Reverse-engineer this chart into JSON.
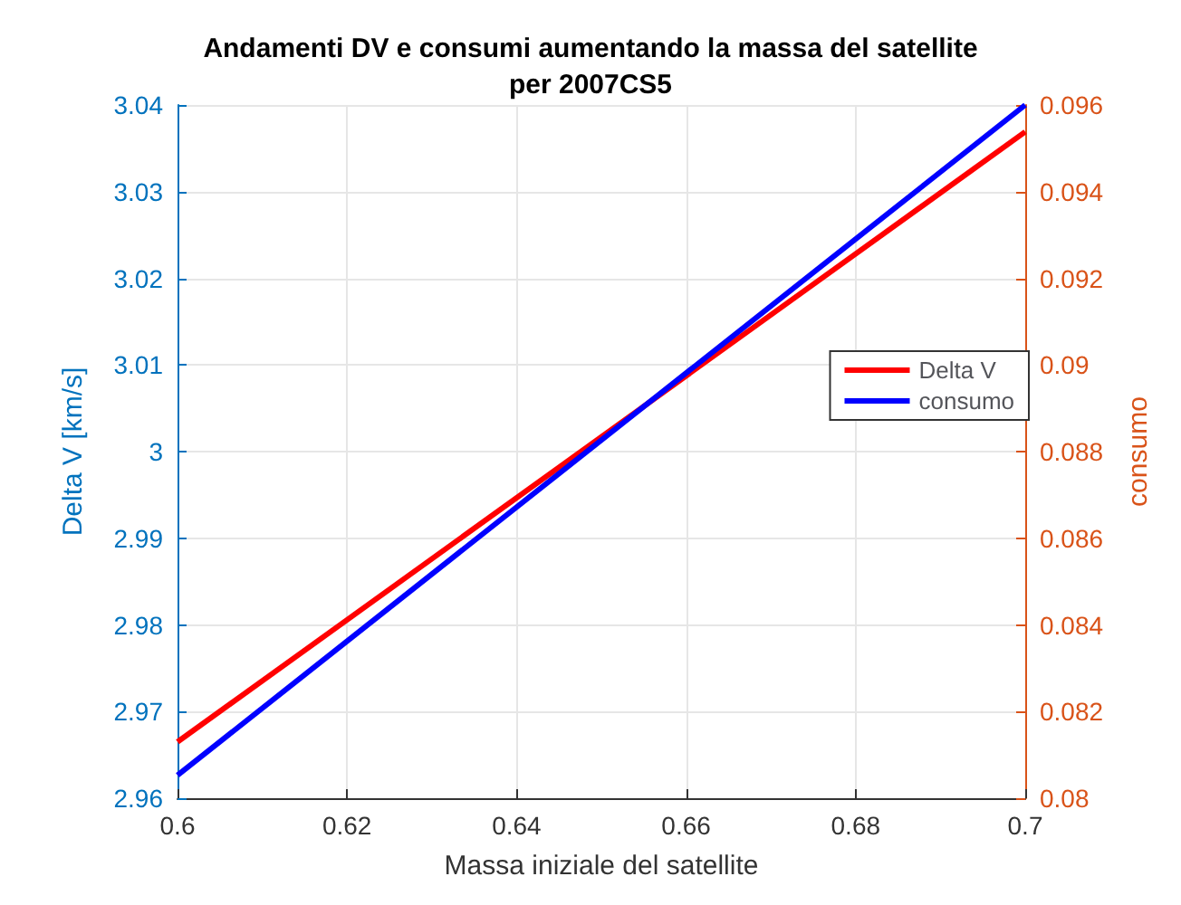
{
  "chart_data": {
    "type": "line",
    "title": "Andamenti DV e consumi aumentando la massa del satellite\nper 2007CS5",
    "xlabel": "Massa iniziale del satellite",
    "ylabel": "Delta V [km/s]",
    "y2label": "consumo",
    "x": [
      0.6,
      0.7
    ],
    "series": [
      {
        "name": "Delta V",
        "color": "#ff0000",
        "values": [
          2.9665,
          3.0369
        ]
      },
      {
        "name": "consumo",
        "color": "#0000ff",
        "values": [
          0.08053,
          0.096
        ],
        "axis": "y2"
      }
    ],
    "xlim": [
      0.6,
      0.7
    ],
    "xticks": [
      0.6,
      0.62,
      0.64,
      0.66,
      0.68,
      0.7
    ],
    "ylim": [
      2.96,
      3.04
    ],
    "yticks": [
      2.96,
      2.97,
      2.98,
      2.99,
      3,
      3.01,
      3.02,
      3.03,
      3.04
    ],
    "y2lim": [
      0.08,
      0.096
    ],
    "y2ticks": [
      0.08,
      0.082,
      0.084,
      0.086,
      0.088,
      0.09,
      0.092,
      0.094,
      0.096
    ],
    "grid": true,
    "legend": "right",
    "marker": "none",
    "line_style": "solid"
  }
}
